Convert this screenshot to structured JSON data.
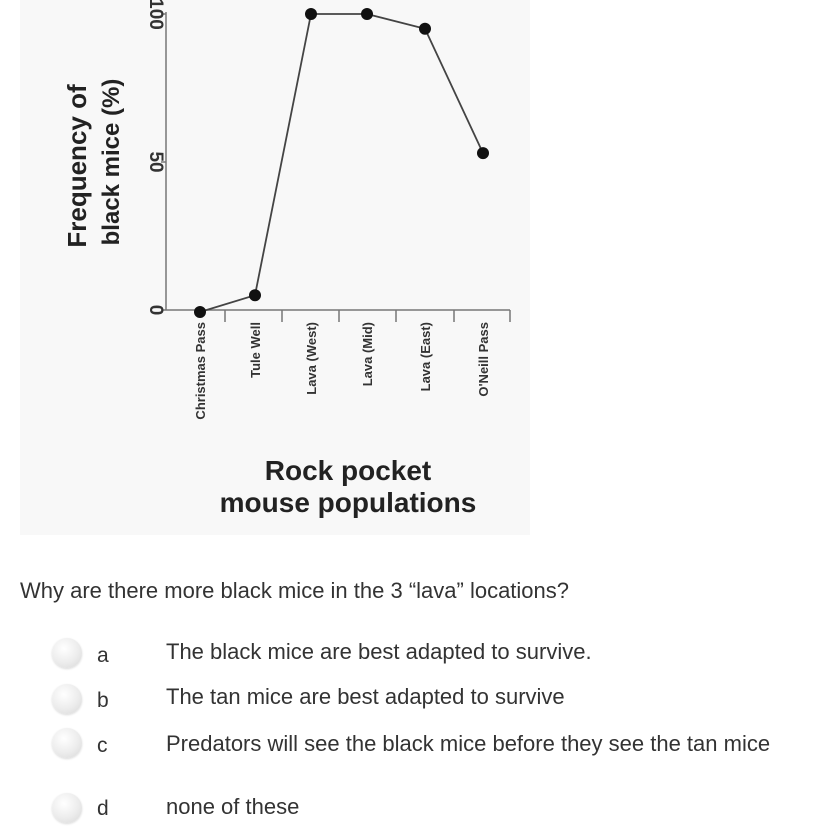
{
  "chart_data": {
    "type": "line",
    "ylabel_line1": "Frequency of",
    "ylabel_line2": "black mice (%)",
    "xlabel_line1": "Rock pocket",
    "xlabel_line2": "mouse populations",
    "categories": [
      "Christmas Pass",
      "Tule Well",
      "Lava (West)",
      "Lava (Mid)",
      "Lava (East)",
      "O'Neill Pass"
    ],
    "values": [
      0,
      5,
      100,
      100,
      95,
      53
    ],
    "yticks": [
      "0",
      "50",
      "100"
    ],
    "ylim": [
      0,
      100
    ],
    "grid": false,
    "series_color": "#444444"
  },
  "question": {
    "text": "Why are there more black mice in the 3 “lava” locations?"
  },
  "options": [
    {
      "letter": "a",
      "text": "The black mice are best adapted to survive."
    },
    {
      "letter": "b",
      "text": "The tan mice are best adapted to survive"
    },
    {
      "letter": "c",
      "text": "Predators will see the black mice before they see the tan mice"
    },
    {
      "letter": "d",
      "text": "none of these"
    }
  ]
}
